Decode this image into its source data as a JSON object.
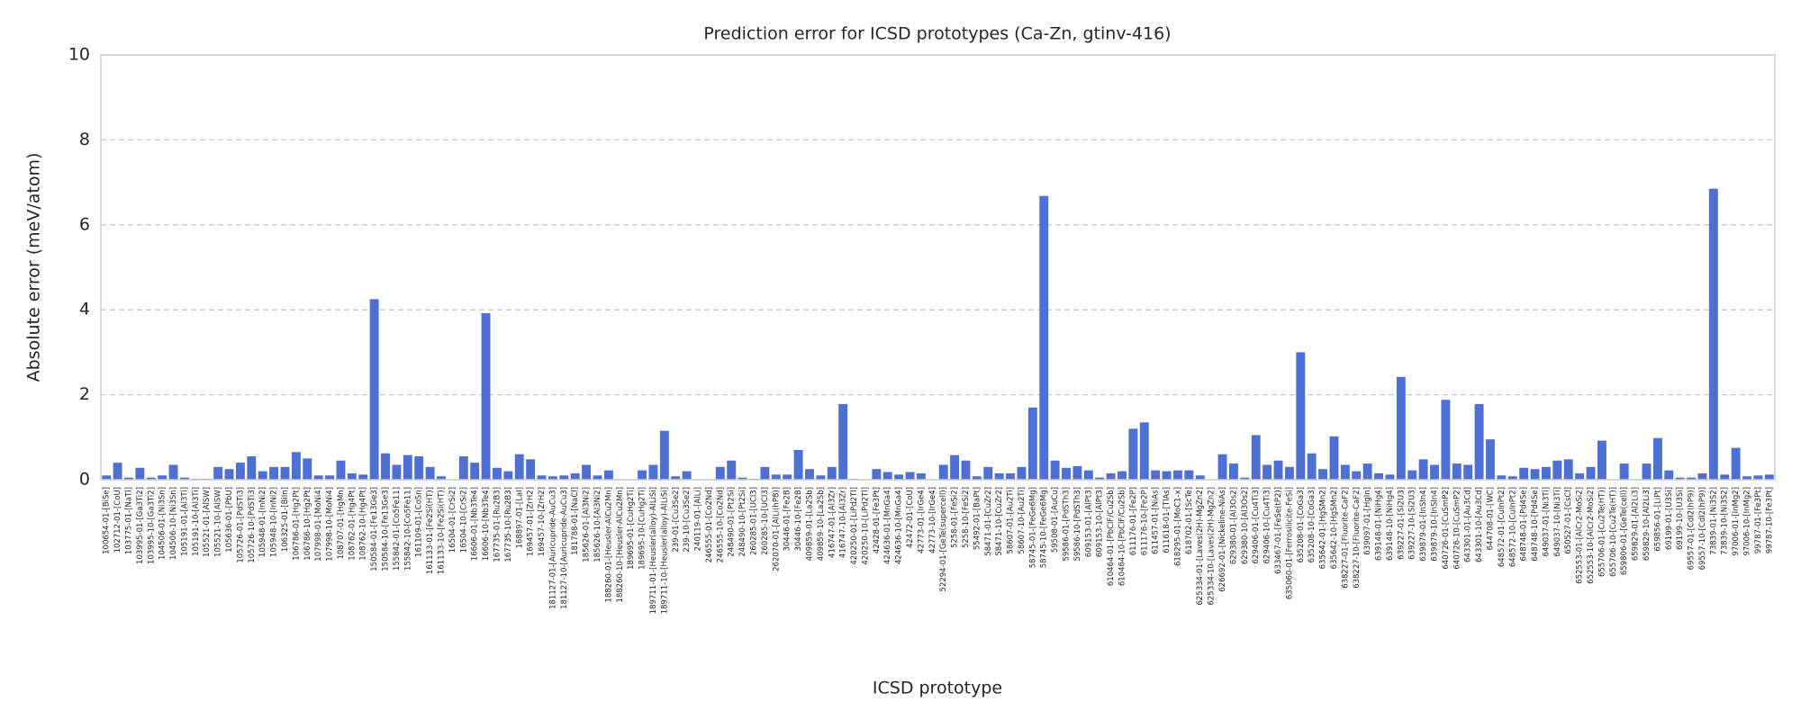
{
  "chart_data": {
    "type": "bar",
    "title": "Prediction error for ICSD prototypes (Ca-Zn, gtinv-416)",
    "xlabel": "ICSD prototype",
    "ylabel": "Absolute error (meV/atom)",
    "color": "#4e6fd4",
    "grid": true,
    "ylim": [
      0,
      10
    ],
    "yticks": [
      0,
      2,
      4,
      6,
      8,
      10
    ],
    "categories": [
      "100654-01-[BiSe]",
      "102712-01-[CoU]",
      "103775-01-[NaTl]",
      "103995-01-[Ga3Ti2]",
      "103995-10-[Ga3Ti2]",
      "104506-01-[Ni3Sn]",
      "104506-10-[Ni3Sn]",
      "105191-01-[Al3Ti]",
      "105191-10-[Al3Ti]",
      "105521-01-[AlSW]",
      "105521-10-[AlSW]",
      "105636-01-[PbU]",
      "105726-01-[PdSTi3]",
      "105726-10-[PdSTi3]",
      "105948-01-[InNi2]",
      "105948-10-[InNi2]",
      "106325-01-[BiIn]",
      "106786-01-[Hg2Pt]",
      "106786-10-[Hg2Pt]",
      "107998-01-[MoNi4]",
      "107998-10-[MoNi4]",
      "108707-01-[HgMn]",
      "108762-01-[Hg4Pt]",
      "108762-10-[Hg4Pt]",
      "150584-01-[Fe13Ge3]",
      "150584-10-[Fe13Ge3]",
      "155842-01-[Co5Fe11]",
      "155842-10-[Co5Fe11]",
      "161109-01-[CoSn]",
      "161133-01-[Fe2Si(HT)]",
      "161133-10-[Fe2Si(HT)]",
      "16504-01-[CrSi2]",
      "16504-10-[CrSi2]",
      "16606-01-[Nb3Te4]",
      "16606-10-[Nb3Te4]",
      "167735-01-[Ru2B3]",
      "167735-10-[Ru2B3]",
      "168897-01-[LaI]",
      "169457-01-[ZrH2]",
      "169457-10-[ZrH2]",
      "181127-01-[Auricupride-AuCu3]",
      "181127-10-[Auricupride-AuCu3]",
      "181788-01-[NaCl]",
      "185626-01-[Al3Ni2]",
      "185626-10-[Al3Ni2]",
      "188260-01-[Heusler-AlCu2Mn]",
      "188260-10-[Heusler-AlCu2Mn]",
      "189695-01-[CuHg2Ti]",
      "189695-10-[CuHg2Ti]",
      "189711-01-[Heusler(alloy)-AlLiSi]",
      "189711-10-[Heusler(alloy)-AlLiSi]",
      "239-01-[Cu3Se2]",
      "239-10-[Cu3Se2]",
      "240119-01-[AlLi]",
      "246555-01-[Co2Nd]",
      "246555-10-[Co2Nd]",
      "248490-01-[Pt2Si]",
      "248490-10-[Pt2Si]",
      "260285-01-[UCl3]",
      "260285-10-[UCl3]",
      "262070-01-[AlLi(hP8)]",
      "30446-01-[Fe2B]",
      "30446-10-[Fe2B]",
      "409859-01-[La2Sb]",
      "409859-10-[La2Sb]",
      "416747-01-[Al3Zr]",
      "416747-10-[Al3Zr]",
      "420250-01-[LiPd2Tl]",
      "420250-10-[LiPd2Tl]",
      "42428-01-[Fe3Pt]",
      "424636-01-[MnGa4]",
      "424636-10-[MnGa4]",
      "42472-01-[CoU]",
      "42773-01-[IrGe4]",
      "42773-10-[IrGe4]",
      "52294-01-[GeTe(supercell)]",
      "5258-01-[FeSi2]",
      "5258-10-[FeSi2]",
      "55492-01-[BaPt]",
      "58471-01-[CuZr2]",
      "58471-10-[CuZr2]",
      "58607-01-[Au2Ti]",
      "58607-10-[Au2Ti]",
      "58745-01-[FeGe6Mg]",
      "58745-10-[FeGe6Mg]",
      "59508-01-[AuCu]",
      "59586-01-[PdSTh3]",
      "59586-10-[PdSTh3]",
      "609153-01-[AlPt3]",
      "609153-10-[AlPt3]",
      "610464-01-[PbClF/Cu2Sb]",
      "610464-10-[PbClF/Cu2Sb]",
      "611176-01-[Fe2P]",
      "611176-10-[Fe2P]",
      "611457-01-[NiAs]",
      "611618-01-[TlAs]",
      "618295-01-[MoC1-x]",
      "618702-01-[ScTe]",
      "625334-01-[Laves(2H)-MgZn2]",
      "625334-10-[Laves(2H)-MgZn2]",
      "626692-01-[Nickeline-NiAs]",
      "629380-01-[Al3Os2]",
      "629380-10-[Al3Os2]",
      "629406-01-[Cu4Ti3]",
      "629406-10-[Cu4Ti3]",
      "633467-01-[FeSe(tP2)]",
      "635060-01-[Ferrosilicite-FeSi]",
      "635208-01-[CoGa3]",
      "635208-10-[CoGa3]",
      "635642-01-[HgSMn2]",
      "635642-10-[HgSMn2]",
      "638227-01-[Fluorite-CaF2]",
      "638227-10-[Fluorite-CaF2]",
      "639097-01-[HgIn]",
      "639148-01-[NiHg4]",
      "639148-10-[NiHg4]",
      "639227-01-[Si2U3]",
      "639227-10-[Si2U3]",
      "639879-01-[InSIn4]",
      "639879-10-[InSIn4]",
      "640726-01-[CuSmP2]",
      "640726-10-[CuSmP2]",
      "643301-01-[Au3Cd]",
      "643301-10-[Au3Cd]",
      "644708-01-[WC]",
      "648572-01-[CuInPt2]",
      "648572-10-[CuInPt2]",
      "648748-01-[Pd4Se]",
      "648748-10-[Pd4Se]",
      "649037-01-[Ni3Ti]",
      "649037-10-[Ni3Ti]",
      "650527-01-[CsCl]",
      "652553-01-[AlCr2-MoSi2]",
      "652553-10-[AlCr2-MoSi2]",
      "655706-01-[Cu2Te(HT)]",
      "655706-10-[Cu2Te(HT)]",
      "659806-01-[GeTe(cell)]",
      "659829-01-[Al2Li3]",
      "659829-10-[Al2Li3]",
      "659856-01-[LiPt]",
      "69199-01-[U3Si]",
      "69199-10-[U3Si]",
      "69557-01-[CdI2(hP9)]",
      "69557-10-[CdI2(hP9)]",
      "73839-01-[Ni3S2]",
      "73839-10-[Ni3S2]",
      "97006-01-[InMg2]",
      "97006-10-[InMg2]",
      "99787-01-[Fe3Pt]",
      "99787-10-[Fe3Pt]"
    ],
    "values": [
      0.1,
      0.4,
      0.05,
      0.28,
      0.05,
      0.1,
      0.35,
      0.05,
      0.02,
      0.02,
      0.3,
      0.25,
      0.4,
      0.55,
      0.2,
      0.3,
      0.3,
      0.65,
      0.5,
      0.1,
      0.1,
      0.45,
      0.15,
      0.12,
      4.25,
      0.62,
      0.35,
      0.58,
      0.55,
      0.3,
      0.08,
      0.0,
      0.55,
      0.4,
      3.92,
      0.28,
      0.2,
      0.6,
      0.48,
      0.1,
      0.08,
      0.1,
      0.15,
      0.35,
      0.1,
      0.22,
      0.0,
      0.0,
      0.22,
      0.35,
      1.15,
      0.08,
      0.2,
      0.0,
      0.0,
      0.3,
      0.45,
      0.05,
      0.02,
      0.3,
      0.12,
      0.12,
      0.7,
      0.25,
      0.1,
      0.3,
      1.78,
      0.02,
      0.0,
      0.25,
      0.18,
      0.12,
      0.18,
      0.15,
      0.0,
      0.35,
      0.58,
      0.45,
      0.08,
      0.3,
      0.15,
      0.15,
      0.3,
      1.7,
      6.68,
      0.45,
      0.28,
      0.32,
      0.22,
      0.05,
      0.15,
      0.2,
      1.2,
      1.35,
      0.22,
      0.2,
      0.22,
      0.22,
      0.1,
      0.0,
      0.6,
      0.38,
      0.05,
      1.05,
      0.35,
      0.45,
      0.3,
      3.0,
      0.62,
      0.25,
      1.02,
      0.35,
      0.2,
      0.38,
      0.15,
      0.12,
      2.42,
      0.22,
      0.48,
      0.35,
      1.88,
      0.38,
      0.35,
      1.78,
      0.95,
      0.1,
      0.08,
      0.28,
      0.25,
      0.3,
      0.45,
      0.48,
      0.15,
      0.3,
      0.92,
      0.0,
      0.38,
      0.0,
      0.38,
      0.98,
      0.22,
      0.05,
      0.05,
      0.15,
      6.85,
      0.12,
      0.75,
      0.08,
      0.1,
      0.12
    ]
  }
}
